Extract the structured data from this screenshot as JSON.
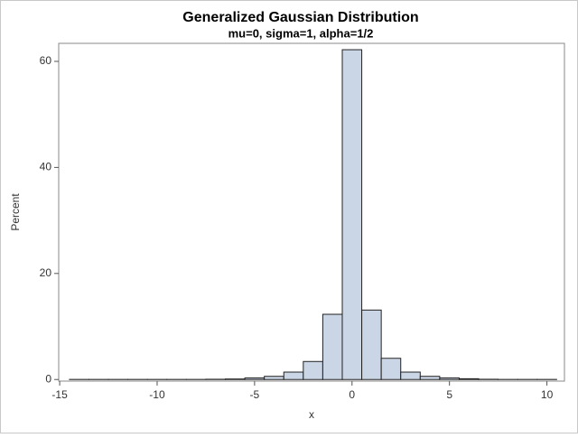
{
  "chart_data": {
    "type": "histogram",
    "title": "Generalized Gaussian Distribution",
    "subtitle": "mu=0, sigma=1, alpha=1/2",
    "x_label": "x",
    "y_label": "Percent",
    "bins": [
      -14.5,
      -13.5,
      -12.5,
      -11.5,
      -10.5,
      -9.5,
      -8.5,
      -7.5,
      -6.5,
      -5.5,
      -4.5,
      -3.5,
      -2.5,
      -1.5,
      -0.5,
      0.5,
      1.5,
      2.5,
      3.5,
      4.5,
      5.5,
      6.5,
      7.5,
      8.5,
      9.5,
      10.5
    ],
    "values": [
      0.02,
      0.02,
      0.02,
      0.02,
      0.02,
      0.02,
      0.02,
      0.05,
      0.1,
      0.3,
      0.6,
      1.4,
      3.4,
      12.3,
      62.2,
      13.1,
      4.0,
      1.4,
      0.6,
      0.3,
      0.15,
      0.05,
      0.02,
      0.02,
      0.02
    ],
    "color": "#cad5e5",
    "edge_color": "#222222",
    "xlim": [
      -15.05,
      10.9
    ],
    "ylim": [
      -0.3,
      63.4
    ],
    "xticks": [
      -15,
      -10,
      -5,
      0,
      5,
      10
    ],
    "yticks": [
      0,
      20,
      40,
      60
    ]
  }
}
